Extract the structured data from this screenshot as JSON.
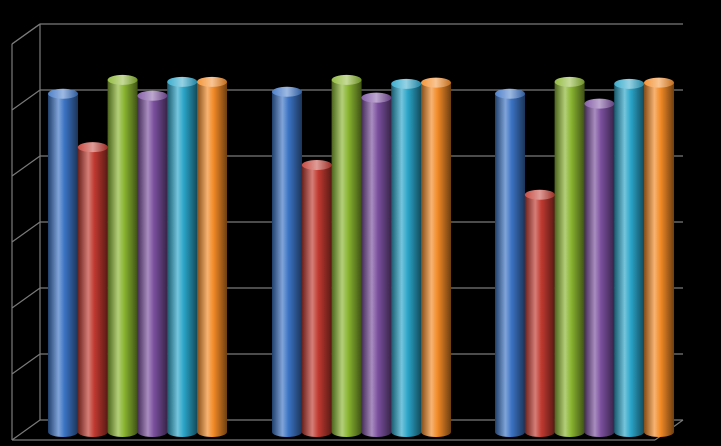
{
  "chart_data": {
    "type": "bar",
    "categories": [
      "",
      "",
      ""
    ],
    "series": [
      {
        "name": "",
        "color": "#3b73c4",
        "values": [
          0.93,
          0.935,
          0.93
        ]
      },
      {
        "name": "",
        "color": "#c0392f",
        "values": [
          0.795,
          0.75,
          0.675
        ]
      },
      {
        "name": "",
        "color": "#8ab531",
        "values": [
          0.965,
          0.965,
          0.96
        ]
      },
      {
        "name": "",
        "color": "#7a4f9e",
        "values": [
          0.925,
          0.92,
          0.905
        ]
      },
      {
        "name": "",
        "color": "#2aa5c9",
        "values": [
          0.96,
          0.955,
          0.955
        ]
      },
      {
        "name": "",
        "color": "#f28a26",
        "values": [
          0.96,
          0.958,
          0.958
        ]
      }
    ],
    "ylim": [
      0,
      1
    ],
    "grid": true,
    "legend": "none",
    "title": "",
    "xlabel": "",
    "ylabel": ""
  }
}
